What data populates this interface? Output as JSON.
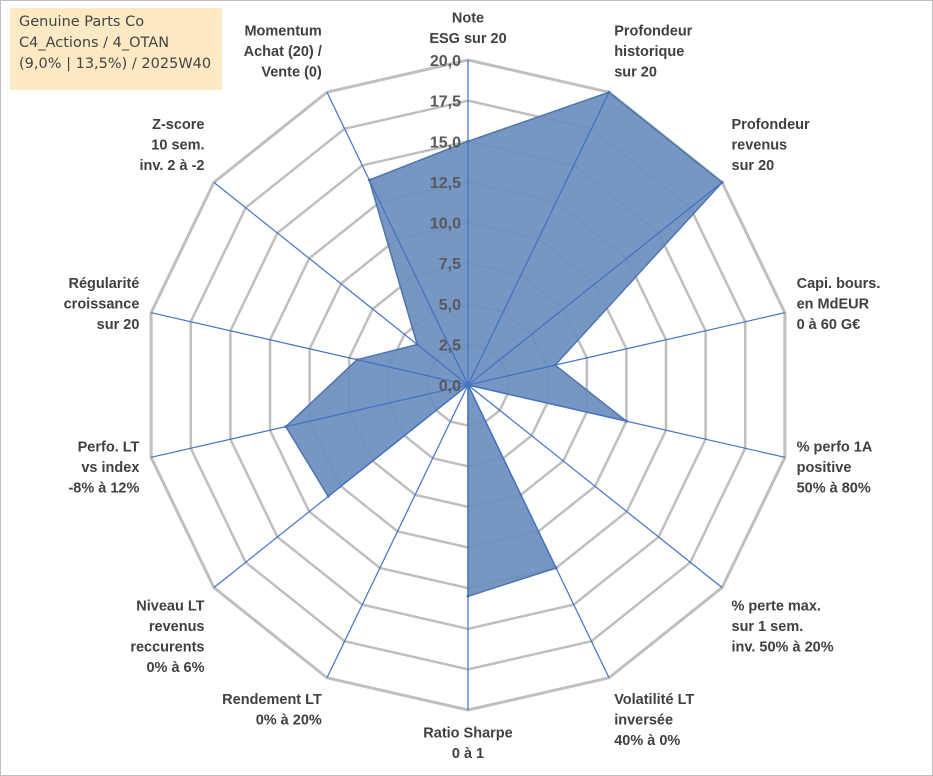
{
  "info_box": {
    "line1": "Genuine Parts Co",
    "line2": "C4_Actions / 4_OTAN",
    "line3": "(9,0% | 13,5%) / 2025W40"
  },
  "colors": {
    "fill": "#6c8ebf",
    "outline": "#4f75ab",
    "axis": "#4472c4",
    "grid": "#bfbfbf"
  },
  "chart_data": {
    "type": "radar",
    "title": "",
    "rmin": 0,
    "rmax": 20,
    "ticks": [
      "0,0",
      "2,5",
      "5,0",
      "7,5",
      "10,0",
      "12,5",
      "15,0",
      "17,5",
      "20,0"
    ],
    "categories": [
      [
        "Note",
        "ESG sur 20"
      ],
      [
        "Profondeur",
        "historique",
        "sur 20"
      ],
      [
        "Profondeur",
        "revenus",
        "sur 20"
      ],
      [
        "Capi. bours.",
        "en MdEUR",
        "0 à 60 G€"
      ],
      [
        "% perfo 1A",
        "positive",
        "50% à 80%"
      ],
      [
        "% perte max.",
        "sur 1 sem.",
        "inv. 50% à 20%"
      ],
      [
        "Volatilité LT",
        "inversée",
        "40% à 0%"
      ],
      [
        "Ratio Sharpe",
        "0 à 1"
      ],
      [
        "Rendement LT",
        "0% à 20%"
      ],
      [
        "Niveau LT",
        "revenus",
        "reccurents",
        "0% à 6%"
      ],
      [
        "Perfo. LT",
        "vs index",
        "-8% à 12%"
      ],
      [
        "Régularité",
        "croissance",
        "sur 20"
      ],
      [
        "Z-score",
        "10 sem.",
        "inv. 2 à -2"
      ],
      [
        "Momentum",
        "Achat (20) /",
        "Vente (0)"
      ]
    ],
    "series": [
      {
        "name": "Genuine Parts Co",
        "values": [
          15.0,
          20.0,
          20.0,
          5.5,
          10.0,
          0.0,
          12.5,
          13.0,
          0.0,
          11.0,
          11.5,
          7.0,
          4.0,
          14.0
        ]
      }
    ]
  }
}
